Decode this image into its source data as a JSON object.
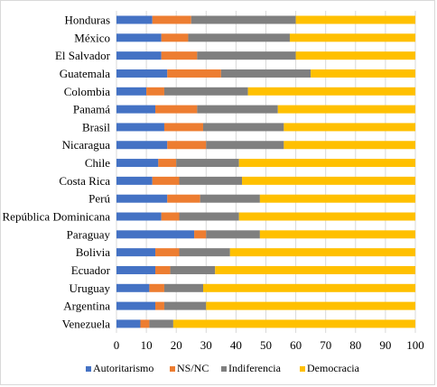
{
  "chart_data": {
    "type": "bar",
    "orientation": "horizontal",
    "stacked": true,
    "categories": [
      "Honduras",
      "México",
      "El Salvador",
      "Guatemala",
      "Colombia",
      "Panamá",
      "Brasil",
      "Nicaragua",
      "Chile",
      "Costa Rica",
      "Perú",
      "República Dominicana",
      "Paraguay",
      "Bolivia",
      "Ecuador",
      "Uruguay",
      "Argentina",
      "Venezuela"
    ],
    "series": [
      {
        "name": "Autoritarismo",
        "color": "#4472C4",
        "values": [
          12,
          15,
          15,
          17,
          10,
          13,
          16,
          17,
          14,
          12,
          17,
          15,
          26,
          13,
          13,
          11,
          13,
          8
        ]
      },
      {
        "name": "NS/NC",
        "color": "#ED7D31",
        "values": [
          13,
          9,
          12,
          18,
          6,
          14,
          13,
          13,
          6,
          9,
          11,
          6,
          4,
          8,
          5,
          5,
          3,
          3
        ]
      },
      {
        "name": "Indiferencia",
        "color": "#7F7F7F",
        "values": [
          35,
          34,
          33,
          30,
          28,
          27,
          27,
          26,
          21,
          21,
          20,
          20,
          18,
          17,
          15,
          13,
          14,
          8
        ]
      },
      {
        "name": "Democracia",
        "color": "#FFC000",
        "values": [
          40,
          42,
          40,
          35,
          56,
          46,
          44,
          44,
          59,
          58,
          52,
          59,
          52,
          62,
          67,
          71,
          70,
          81
        ]
      }
    ],
    "xlim": [
      0,
      100
    ],
    "xticks": [
      0,
      10,
      20,
      30,
      40,
      50,
      60,
      70,
      80,
      90,
      100
    ],
    "grid": true,
    "legend_position": "bottom"
  }
}
